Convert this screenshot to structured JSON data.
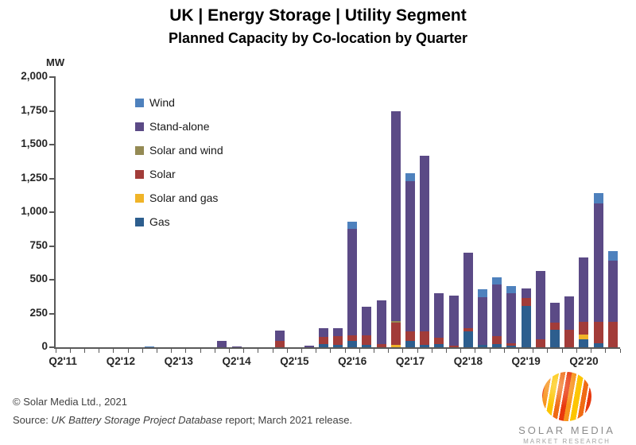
{
  "header": {
    "title": "UK | Energy Storage | Utility Segment",
    "subtitle": "Planned Capacity by Co-location by Quarter"
  },
  "chart_data": {
    "type": "bar",
    "stacked": true,
    "title": "UK | Energy Storage | Utility Segment",
    "subtitle": "Planned Capacity by Co-location by Quarter",
    "unit_label": "MW",
    "ylabel": "MW",
    "ylim": [
      0,
      2000
    ],
    "ytick_step": 250,
    "yticks_desc": [
      "2,000",
      "1,750",
      "1,500",
      "1,250",
      "1,000",
      "750",
      "500",
      "250",
      "0"
    ],
    "grid": false,
    "legend_position": "upper-left-inside",
    "xtick_every": 4,
    "categories": [
      "Q2'11",
      "Q3'11",
      "Q4'11",
      "Q1'12",
      "Q2'12",
      "Q3'12",
      "Q4'12",
      "Q1'13",
      "Q2'13",
      "Q3'13",
      "Q4'13",
      "Q1'14",
      "Q2'14",
      "Q3'14",
      "Q4'14",
      "Q1'15",
      "Q2'15",
      "Q3'15",
      "Q4'15",
      "Q1'16",
      "Q2'16",
      "Q3'16",
      "Q4'16",
      "Q1'17",
      "Q2'17",
      "Q3'17",
      "Q4'17",
      "Q1'18",
      "Q2'18",
      "Q3'18",
      "Q4'18",
      "Q1'19",
      "Q2'19",
      "Q3'19",
      "Q4'19",
      "Q1'20",
      "Q2'20",
      "Q3'20",
      "Q4'20"
    ],
    "series": [
      {
        "name": "Gas",
        "color": "#2d5e8e",
        "values": [
          0,
          0,
          0,
          0,
          0,
          0,
          0,
          0,
          0,
          0,
          0,
          0,
          0,
          0,
          0,
          0,
          0,
          0,
          25,
          20,
          45,
          15,
          0,
          0,
          50,
          20,
          25,
          0,
          115,
          20,
          25,
          10,
          305,
          0,
          130,
          0,
          60,
          30,
          0
        ]
      },
      {
        "name": "Solar and gas",
        "color": "#f0b428",
        "values": [
          0,
          0,
          0,
          0,
          0,
          0,
          0,
          0,
          0,
          0,
          0,
          0,
          0,
          0,
          0,
          0,
          0,
          0,
          0,
          0,
          0,
          0,
          0,
          20,
          0,
          0,
          0,
          0,
          0,
          0,
          0,
          0,
          0,
          0,
          0,
          0,
          35,
          0,
          0
        ]
      },
      {
        "name": "Solar",
        "color": "#a23c39",
        "values": [
          0,
          0,
          0,
          0,
          0,
          0,
          0,
          0,
          0,
          0,
          0,
          0,
          0,
          0,
          0,
          45,
          0,
          0,
          50,
          60,
          45,
          75,
          25,
          165,
          65,
          100,
          45,
          10,
          25,
          0,
          55,
          20,
          60,
          60,
          55,
          130,
          95,
          160,
          190
        ]
      },
      {
        "name": "Solar and wind",
        "color": "#948a54",
        "values": [
          0,
          0,
          0,
          0,
          0,
          0,
          0,
          0,
          0,
          0,
          0,
          0,
          0,
          0,
          0,
          0,
          0,
          0,
          0,
          0,
          0,
          0,
          0,
          10,
          0,
          0,
          0,
          0,
          0,
          0,
          0,
          0,
          0,
          0,
          0,
          0,
          0,
          0,
          0
        ]
      },
      {
        "name": "Stand-alone",
        "color": "#5b4a86",
        "values": [
          0,
          0,
          0,
          0,
          0,
          0,
          0,
          0,
          0,
          0,
          0,
          50,
          8,
          0,
          0,
          80,
          0,
          10,
          65,
          60,
          785,
          210,
          320,
          1550,
          1115,
          1300,
          330,
          375,
          560,
          350,
          385,
          370,
          70,
          505,
          145,
          245,
          475,
          875,
          450
        ]
      },
      {
        "name": "Wind",
        "color": "#4e81bd",
        "values": [
          0,
          0,
          0,
          0,
          0,
          0,
          8,
          0,
          0,
          0,
          0,
          0,
          0,
          0,
          0,
          0,
          0,
          0,
          0,
          0,
          55,
          0,
          0,
          0,
          60,
          0,
          0,
          0,
          0,
          60,
          55,
          55,
          0,
          0,
          0,
          0,
          0,
          75,
          70
        ]
      }
    ]
  },
  "footer": {
    "copyright": "© Solar Media Ltd., 2021",
    "source_prefix": "Source: ",
    "source_database": "UK Battery Storage Project Database",
    "source_suffix": " report; March 2021 release."
  },
  "logo": {
    "name": "SOLAR MEDIA",
    "tagline": "MARKET RESEARCH"
  }
}
